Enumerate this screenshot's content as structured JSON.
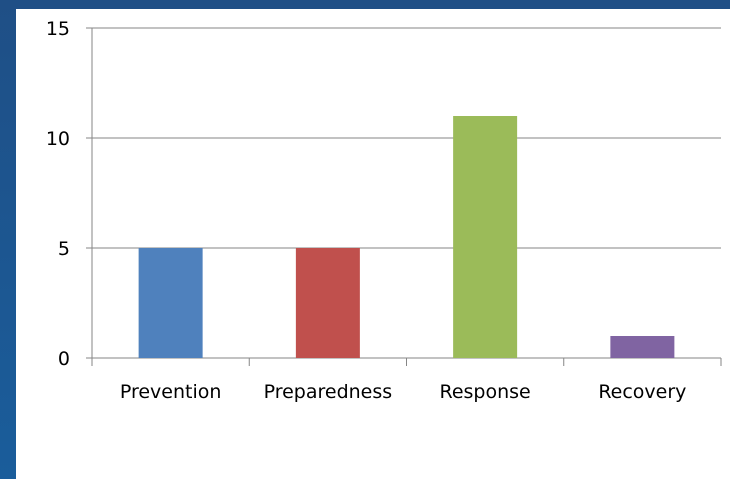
{
  "chart_data": {
    "type": "bar",
    "categories": [
      "Prevention",
      "Preparedness",
      "Response",
      "Recovery"
    ],
    "values": [
      5,
      5,
      11,
      1
    ],
    "colors": [
      "#4f81bd",
      "#c0504d",
      "#9bbb59",
      "#8064a2"
    ],
    "ylim": [
      0,
      15
    ],
    "yticks": [
      "0",
      "5",
      "10",
      "15"
    ],
    "grid": true,
    "legend": "none"
  }
}
